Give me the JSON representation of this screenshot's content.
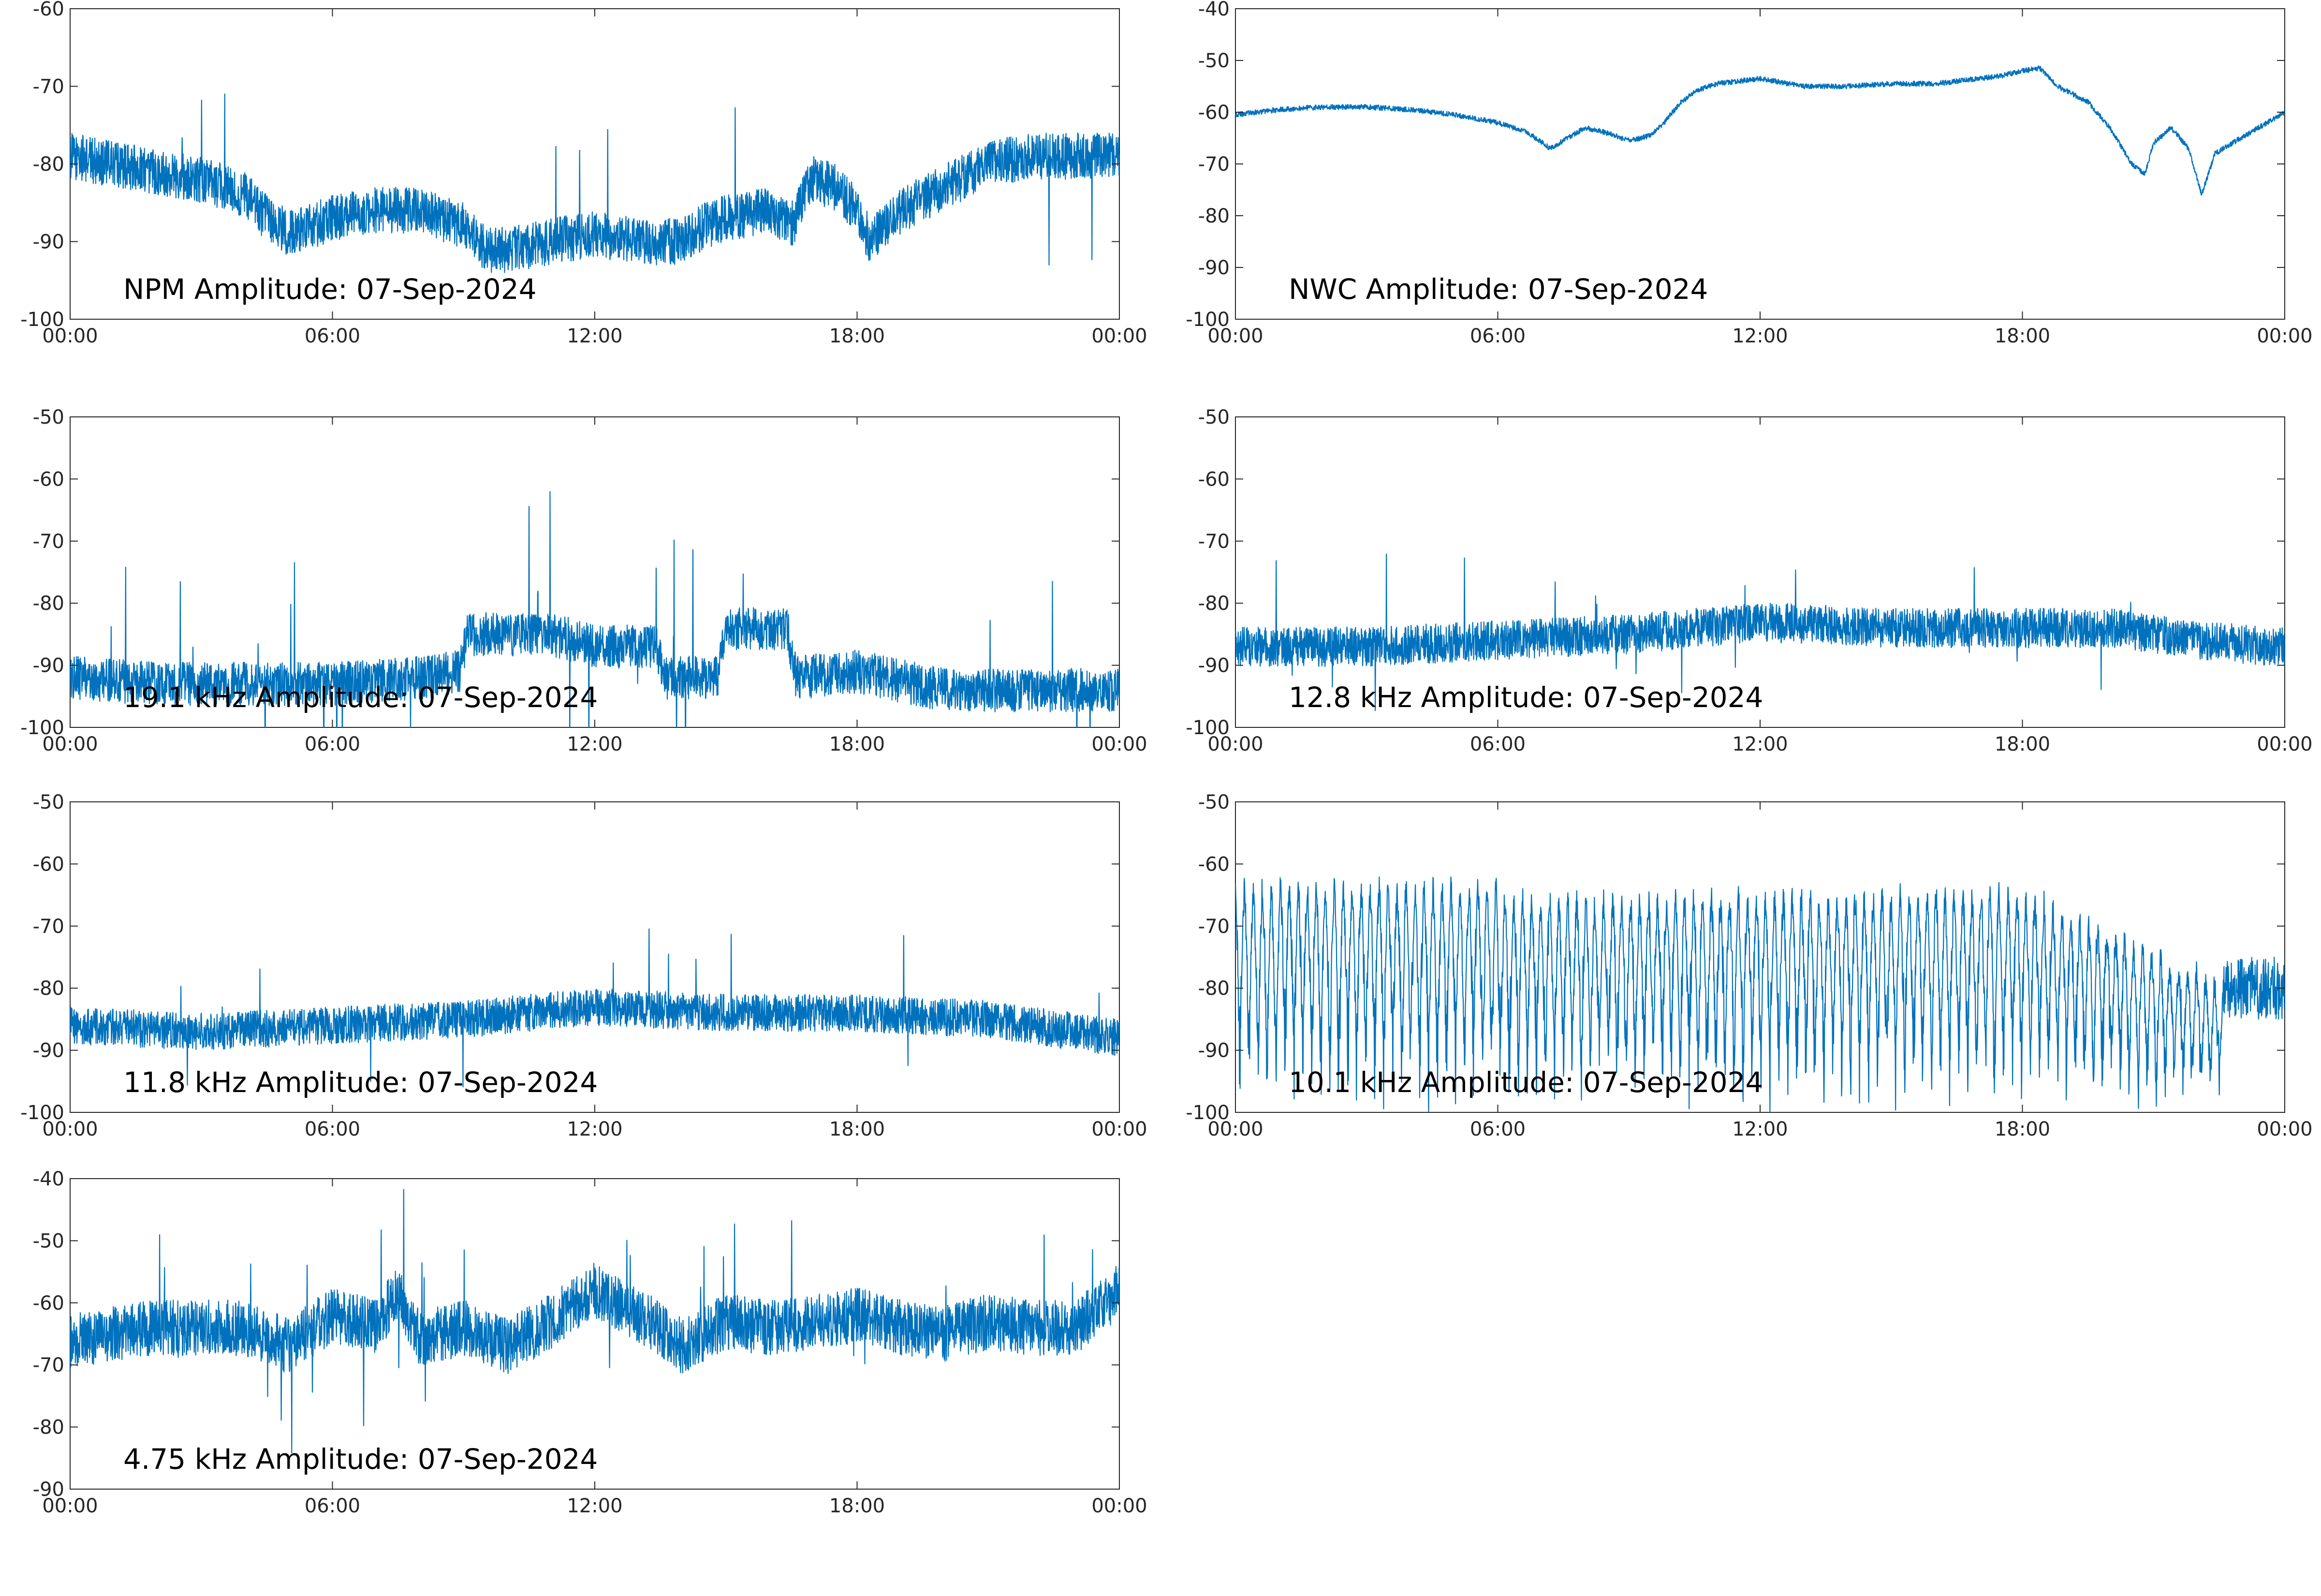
{
  "colors": {
    "trace": "#0072BD",
    "axes": "#262626",
    "background": "#ffffff"
  },
  "chart_data": [
    {
      "type": "line",
      "title": "NPM Amplitude: 07-Sep-2024",
      "xlabel": "",
      "ylabel": "",
      "xlim": [
        0,
        24
      ],
      "ylim": [
        -100,
        -60
      ],
      "xticks": [
        "00:00",
        "06:00",
        "12:00",
        "18:00",
        "00:00"
      ],
      "yticks": [
        -60,
        -70,
        -80,
        -90,
        -100
      ],
      "noise": 3.0,
      "spike_rate": 0.004,
      "spike_size": 12,
      "series": [
        {
          "x": [
            0,
            1,
            2,
            3,
            4,
            4.5,
            5,
            6,
            7,
            8,
            9,
            9.5,
            10,
            11,
            12,
            13,
            14,
            14.5,
            15,
            16,
            16.5,
            16.8,
            17,
            17.5,
            18,
            18.3,
            19,
            20,
            21,
            22,
            23,
            24
          ],
          "values": [
            -79,
            -80,
            -81,
            -82,
            -84,
            -87,
            -89,
            -87,
            -86,
            -86,
            -88,
            -91,
            -91,
            -90,
            -89,
            -90,
            -90,
            -88,
            -87,
            -86,
            -88,
            -84,
            -82,
            -83,
            -86,
            -90,
            -86,
            -83,
            -80,
            -79,
            -79,
            -79
          ]
        }
      ]
    },
    {
      "type": "line",
      "title": "NWC Amplitude: 07-Sep-2024",
      "xlabel": "",
      "ylabel": "",
      "xlim": [
        0,
        24
      ],
      "ylim": [
        -100,
        -40
      ],
      "xticks": [
        "00:00",
        "06:00",
        "12:00",
        "18:00",
        "00:00"
      ],
      "yticks": [
        -40,
        -50,
        -60,
        -70,
        -80,
        -90,
        -100
      ],
      "noise": 0.5,
      "spike_rate": 0,
      "spike_size": 0,
      "series": [
        {
          "x": [
            0,
            1,
            2,
            3,
            4,
            5,
            6,
            6.7,
            7.2,
            7.6,
            8,
            8.5,
            9,
            9.5,
            9.8,
            10.2,
            10.5,
            11,
            12,
            13,
            14,
            15,
            16,
            17,
            17.5,
            18,
            18.4,
            18.8,
            19.5,
            20,
            20.5,
            20.8,
            21,
            21.4,
            21.8,
            22.1,
            22.4,
            23,
            24
          ],
          "values": [
            -60.5,
            -59.5,
            -59,
            -59,
            -59.5,
            -60.5,
            -62,
            -64,
            -67,
            -65,
            -63,
            -64,
            -65.5,
            -64.5,
            -62,
            -58,
            -56,
            -54.5,
            -53.5,
            -55,
            -55,
            -54.5,
            -54.5,
            -53.5,
            -53,
            -52,
            -51.5,
            -55,
            -58,
            -63,
            -70,
            -72,
            -66,
            -63,
            -67,
            -76,
            -68,
            -65,
            -60
          ]
        }
      ]
    },
    {
      "type": "line",
      "title": "19.1 kHz Amplitude: 07-Sep-2024",
      "xlabel": "",
      "ylabel": "",
      "xlim": [
        0,
        24
      ],
      "ylim": [
        -100,
        -50
      ],
      "xticks": [
        "00:00",
        "06:00",
        "12:00",
        "18:00",
        "00:00"
      ],
      "yticks": [
        -50,
        -60,
        -70,
        -80,
        -90,
        -100
      ],
      "noise": 3.5,
      "spike_rate": 0.008,
      "spike_size": 14,
      "series": [
        {
          "x": [
            0,
            2,
            4,
            6,
            8,
            8.9,
            9.1,
            11,
            12,
            12.5,
            13.4,
            13.6,
            14.8,
            15,
            16.4,
            16.6,
            18,
            20,
            22,
            24
          ],
          "values": [
            -92,
            -93,
            -93,
            -93,
            -92,
            -91,
            -85,
            -85,
            -87,
            -87,
            -87,
            -92,
            -92,
            -84,
            -84,
            -92,
            -91,
            -94,
            -94,
            -94
          ]
        }
      ]
    },
    {
      "type": "line",
      "title": "12.8 kHz Amplitude: 07-Sep-2024",
      "xlabel": "",
      "ylabel": "",
      "xlim": [
        0,
        24
      ],
      "ylim": [
        -100,
        -50
      ],
      "xticks": [
        "00:00",
        "06:00",
        "12:00",
        "18:00",
        "00:00"
      ],
      "yticks": [
        -50,
        -60,
        -70,
        -80,
        -90,
        -100
      ],
      "noise": 3.2,
      "spike_rate": 0.005,
      "spike_size": 9,
      "series": [
        {
          "x": [
            0,
            3,
            6,
            9,
            12,
            15,
            18,
            20,
            22,
            24
          ],
          "values": [
            -87,
            -87,
            -86,
            -85,
            -83,
            -84,
            -84,
            -84,
            -86,
            -87
          ]
        }
      ]
    },
    {
      "type": "line",
      "title": "11.8 kHz Amplitude: 07-Sep-2024",
      "xlabel": "",
      "ylabel": "",
      "xlim": [
        0,
        24
      ],
      "ylim": [
        -100,
        -50
      ],
      "xticks": [
        "00:00",
        "06:00",
        "12:00",
        "18:00",
        "00:00"
      ],
      "yticks": [
        -50,
        -60,
        -70,
        -80,
        -90,
        -100
      ],
      "noise": 3.0,
      "spike_rate": 0.005,
      "spike_size": 9,
      "series": [
        {
          "x": [
            0,
            3,
            6,
            9,
            12,
            15,
            18,
            21,
            24
          ],
          "values": [
            -86,
            -87,
            -86,
            -85,
            -83,
            -84,
            -84,
            -85,
            -88
          ]
        }
      ]
    },
    {
      "type": "line",
      "title": "10.1 kHz Amplitude: 07-Sep-2024",
      "xlabel": "",
      "ylabel": "",
      "xlim": [
        0,
        24
      ],
      "ylim": [
        -100,
        -50
      ],
      "xticks": [
        "00:00",
        "06:00",
        "12:00",
        "18:00",
        "00:00"
      ],
      "yticks": [
        -50,
        -60,
        -70,
        -80,
        -90,
        -100
      ],
      "noise": 5,
      "spike_rate": 0,
      "spike_size": 0,
      "oscillate": {
        "top": -64,
        "bottom": -100,
        "periods": 110,
        "end": 22.6
      },
      "series": [
        {
          "x": [
            0,
            6,
            6.2,
            12,
            18,
            22.6,
            24
          ],
          "values": [
            -64,
            -64,
            -66,
            -66,
            -65,
            -80,
            -80
          ]
        }
      ]
    },
    {
      "type": "line",
      "title": "4.75 kHz Amplitude: 07-Sep-2024",
      "xlabel": "",
      "ylabel": "",
      "xlim": [
        0,
        24
      ],
      "ylim": [
        -90,
        -40
      ],
      "xticks": [
        "00:00",
        "06:00",
        "12:00",
        "18:00",
        "00:00"
      ],
      "yticks": [
        -40,
        -50,
        -60,
        -70,
        -80,
        -90
      ],
      "noise": 4.5,
      "spike_rate": 0.01,
      "spike_size": 10,
      "series": [
        {
          "x": [
            0,
            2,
            4,
            5,
            6,
            7,
            7.5,
            8,
            9,
            10,
            11,
            12,
            13,
            14,
            15,
            16,
            17,
            18,
            19,
            20,
            21,
            22,
            23,
            24
          ],
          "values": [
            -66,
            -64,
            -64,
            -67,
            -62,
            -64,
            -58,
            -66,
            -64,
            -67,
            -63,
            -58,
            -62,
            -67,
            -63,
            -64,
            -63,
            -62,
            -64,
            -65,
            -63,
            -64,
            -64,
            -58
          ]
        }
      ]
    }
  ]
}
